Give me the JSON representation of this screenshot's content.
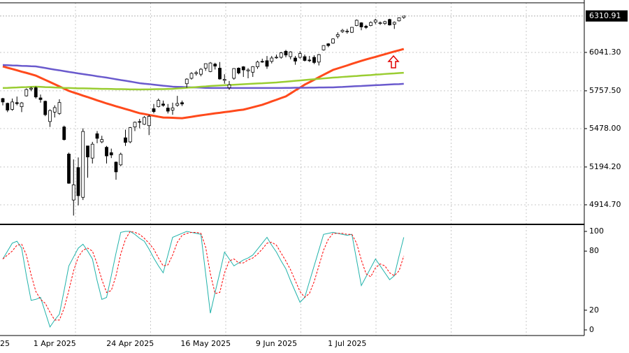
{
  "chart_data": [
    {
      "type": "candlestick",
      "categories": [
        "25",
        null,
        null,
        null,
        null,
        null,
        null,
        null,
        null,
        null,
        null,
        "1 Apr 2025",
        null,
        null,
        null,
        null,
        null,
        null,
        null,
        null,
        null,
        null,
        null,
        null,
        null,
        null,
        null,
        "24 Apr 2025",
        null,
        null,
        null,
        null,
        null,
        null,
        null,
        null,
        null,
        null,
        null,
        null,
        null,
        null,
        null,
        "16 May 2025",
        null,
        null,
        null,
        null,
        null,
        null,
        null,
        null,
        null,
        null,
        null,
        null,
        null,
        null,
        "9 Jun 2025",
        null,
        null,
        null,
        null,
        null,
        null,
        null,
        null,
        null,
        null,
        null,
        null,
        null,
        null,
        "1 Jul 2025",
        null,
        null,
        null,
        null,
        null,
        null,
        null,
        null,
        null,
        null,
        null,
        null
      ],
      "open": [
        5700,
        5665,
        5620,
        5670,
        5640,
        5720,
        5770,
        5780,
        5705,
        5680,
        5530,
        5600,
        5590,
        5490,
        5290,
        4950,
        5190,
        4970,
        5350,
        5260,
        5440,
        5380,
        5340,
        5300,
        5230,
        5210,
        5410,
        5380,
        5490,
        5530,
        5510,
        5500,
        5625,
        5640,
        5660,
        5630,
        5615,
        5650,
        5670,
        5810,
        5850,
        5885,
        5880,
        5925,
        5900,
        5955,
        5925,
        5835,
        5780,
        5850,
        5925,
        5935,
        5905,
        5895,
        5935,
        5975,
        5980,
        5975,
        6005,
        6005,
        6050,
        6010,
        6000,
        6005,
        6010,
        5985,
        6005,
        5970,
        6060,
        6105,
        6110,
        6160,
        6195,
        6195,
        6190,
        6240,
        6260,
        6235,
        6240,
        6265,
        6255,
        6255,
        6285,
        6250,
        6275,
        6300
      ],
      "high": [
        5705,
        5670,
        5700,
        5715,
        5675,
        5775,
        5785,
        5790,
        5730,
        5685,
        5620,
        5650,
        5695,
        5500,
        5300,
        5250,
        5265,
        5480,
        5350,
        5380,
        5460,
        5425,
        5350,
        5330,
        5235,
        5300,
        5470,
        5490,
        5530,
        5550,
        5570,
        5580,
        5660,
        5700,
        5685,
        5660,
        5670,
        5720,
        5685,
        5850,
        5895,
        5905,
        5925,
        5960,
        5970,
        5965,
        5970,
        5880,
        5830,
        5925,
        5930,
        5940,
        5925,
        5940,
        5980,
        5995,
        6015,
        6015,
        6025,
        6045,
        6060,
        6050,
        6015,
        6050,
        6025,
        6015,
        6020,
        6030,
        6095,
        6110,
        6145,
        6190,
        6215,
        6215,
        6230,
        6285,
        6265,
        6245,
        6270,
        6290,
        6270,
        6275,
        6290,
        6270,
        6300,
        6315
      ],
      "low": [
        5650,
        5600,
        5610,
        5650,
        5600,
        5715,
        5755,
        5700,
        5670,
        5570,
        5490,
        5560,
        5580,
        5390,
        5070,
        4835,
        4910,
        4950,
        5115,
        5220,
        5370,
        5370,
        5220,
        5260,
        5100,
        5200,
        5350,
        5370,
        5460,
        5480,
        5505,
        5430,
        5590,
        5635,
        5640,
        5590,
        5580,
        5640,
        5645,
        5780,
        5840,
        5870,
        5865,
        5905,
        5895,
        5915,
        5840,
        5810,
        5765,
        5840,
        5880,
        5860,
        5850,
        5860,
        5920,
        5965,
        5920,
        5960,
        5995,
        5995,
        6005,
        5990,
        5950,
        5995,
        5975,
        5970,
        5955,
        5945,
        6055,
        6080,
        6105,
        6145,
        6185,
        6180,
        6185,
        6235,
        6205,
        6215,
        6235,
        6250,
        6245,
        6245,
        6240,
        6215,
        6270,
        6290
      ],
      "close": [
        5675,
        5615,
        5675,
        5663,
        5668,
        5767,
        5777,
        5712,
        5693,
        5581,
        5612,
        5633,
        5671,
        5397,
        5074,
        5062,
        4982,
        5457,
        5268,
        5363,
        5406,
        5397,
        5276,
        5283,
        5158,
        5288,
        5376,
        5485,
        5525,
        5529,
        5561,
        5569,
        5604,
        5687,
        5650,
        5607,
        5631,
        5664,
        5660,
        5844,
        5886,
        5892,
        5917,
        5958,
        5963,
        5940,
        5845,
        5842,
        5802,
        5922,
        5889,
        5912,
        5912,
        5936,
        5970,
        5971,
        5939,
        6000,
        6006,
        6038,
        6022,
        6045,
        5977,
        6033,
        5982,
        5981,
        5967,
        6025,
        6092,
        6092,
        6141,
        6173,
        6205,
        6198,
        6227,
        6279,
        6230,
        6226,
        6263,
        6280,
        6260,
        6269,
        6244,
        6264,
        6297,
        6310.91
      ],
      "bull_color": "#ffffff",
      "bear_color": "#000000",
      "series": [
        {
          "color": "#ff4a1c",
          "values": [
            5938,
            5928,
            5919,
            5909,
            5899,
            5890,
            5880,
            5870,
            5854,
            5838,
            5822,
            5806,
            5790,
            5773,
            5757,
            5745,
            5734,
            5722,
            5711,
            5699,
            5687,
            5676,
            5664,
            5654,
            5643,
            5633,
            5623,
            5613,
            5602,
            5592,
            5586,
            5579,
            5573,
            5566,
            5560,
            5559,
            5558,
            5556,
            5555,
            5560,
            5565,
            5571,
            5576,
            5581,
            5586,
            5591,
            5595,
            5600,
            5604,
            5609,
            5614,
            5618,
            5627,
            5636,
            5645,
            5654,
            5666,
            5679,
            5691,
            5704,
            5716,
            5738,
            5760,
            5781,
            5803,
            5821,
            5839,
            5858,
            5876,
            5894,
            5912,
            5923,
            5934,
            5945,
            5957,
            5968,
            5979,
            5989,
            5999,
            6008,
            6018,
            6028,
            6038,
            6048,
            6057,
            6067
          ]
        },
        {
          "color": "#6a5acd",
          "values": [
            5948,
            5947,
            5945,
            5944,
            5942,
            5941,
            5939,
            5938,
            5932,
            5926,
            5920,
            5914,
            5909,
            5903,
            5897,
            5892,
            5886,
            5881,
            5876,
            5871,
            5865,
            5860,
            5855,
            5849,
            5843,
            5837,
            5832,
            5826,
            5820,
            5814,
            5810,
            5807,
            5803,
            5799,
            5795,
            5792,
            5788,
            5787,
            5786,
            5784,
            5783,
            5782,
            5781,
            5779,
            5778,
            5778,
            5778,
            5778,
            5778,
            5778,
            5778,
            5778,
            5778,
            5778,
            5778,
            5778,
            5778,
            5778,
            5778,
            5778,
            5779,
            5779,
            5780,
            5780,
            5780,
            5781,
            5781,
            5782,
            5782,
            5783,
            5783,
            5785,
            5786,
            5788,
            5790,
            5792,
            5793,
            5795,
            5797,
            5799,
            5800,
            5802,
            5804,
            5806,
            5807,
            5809
          ]
        },
        {
          "color": "#9acd32",
          "values": [
            5778,
            5779,
            5781,
            5782,
            5784,
            5785,
            5787,
            5788,
            5787,
            5785,
            5784,
            5782,
            5781,
            5779,
            5778,
            5777,
            5776,
            5776,
            5775,
            5774,
            5773,
            5772,
            5772,
            5771,
            5770,
            5770,
            5769,
            5768,
            5768,
            5767,
            5768,
            5768,
            5769,
            5770,
            5770,
            5771,
            5772,
            5775,
            5777,
            5780,
            5782,
            5785,
            5788,
            5790,
            5793,
            5795,
            5797,
            5799,
            5800,
            5802,
            5804,
            5806,
            5808,
            5810,
            5812,
            5813,
            5815,
            5817,
            5819,
            5822,
            5825,
            5828,
            5831,
            5834,
            5837,
            5840,
            5843,
            5846,
            5849,
            5852,
            5855,
            5857,
            5860,
            5862,
            5865,
            5867,
            5870,
            5872,
            5874,
            5877,
            5879,
            5882,
            5884,
            5886,
            5889,
            5891
          ]
        }
      ],
      "ylim": [
        4775,
        6403
      ],
      "yticks": [
        {
          "value": 6041.3,
          "label": "6041.30"
        },
        {
          "value": 5757.5,
          "label": "5757.50"
        },
        {
          "value": 5478,
          "label": "5478.00"
        },
        {
          "value": 5194.2,
          "label": "5194.20"
        },
        {
          "value": 4914.7,
          "label": "4914.70"
        }
      ],
      "last_price": 6310.91,
      "grid": true
    },
    {
      "type": "line",
      "series": [
        {
          "color": "#20b2aa",
          "style": "solid",
          "values": [
            72,
            80,
            88,
            90,
            83,
            55,
            30,
            31,
            33,
            18,
            3,
            10,
            16,
            40,
            65,
            74,
            83,
            87,
            80,
            72,
            50,
            31,
            33,
            55,
            78,
            99,
            100,
            100,
            97,
            93,
            90,
            82,
            73,
            65,
            58,
            76,
            94,
            96,
            98,
            100,
            99,
            98,
            97,
            57,
            17,
            38,
            58,
            79,
            72,
            65,
            68,
            71,
            73,
            76,
            82,
            88,
            94,
            86,
            79,
            70,
            62,
            50,
            39,
            28,
            33,
            49,
            65,
            81,
            97,
            98,
            99,
            98,
            97,
            96,
            97,
            71,
            45,
            54,
            63,
            72,
            65,
            58,
            51,
            55,
            75,
            94
          ]
        },
        {
          "color": "#ff0000",
          "style": "dashed",
          "values": [
            72,
            76,
            80,
            86,
            87,
            76,
            56,
            39,
            31,
            27,
            18,
            10,
            10,
            22,
            40,
            60,
            74,
            81,
            83,
            80,
            67,
            51,
            38,
            40,
            55,
            77,
            92,
            100,
            99,
            97,
            93,
            88,
            82,
            73,
            65,
            66,
            76,
            89,
            96,
            98,
            99,
            99,
            98,
            84,
            57,
            37,
            38,
            58,
            70,
            72,
            68,
            68,
            71,
            73,
            77,
            82,
            88,
            89,
            86,
            78,
            70,
            61,
            50,
            39,
            33,
            37,
            49,
            65,
            81,
            92,
            98,
            98,
            98,
            97,
            97,
            88,
            71,
            57,
            54,
            63,
            67,
            65,
            58,
            55,
            60,
            75
          ]
        }
      ],
      "ylim": [
        -5.7,
        105.7
      ],
      "yticks": [
        100,
        80,
        20,
        0
      ]
    }
  ]
}
